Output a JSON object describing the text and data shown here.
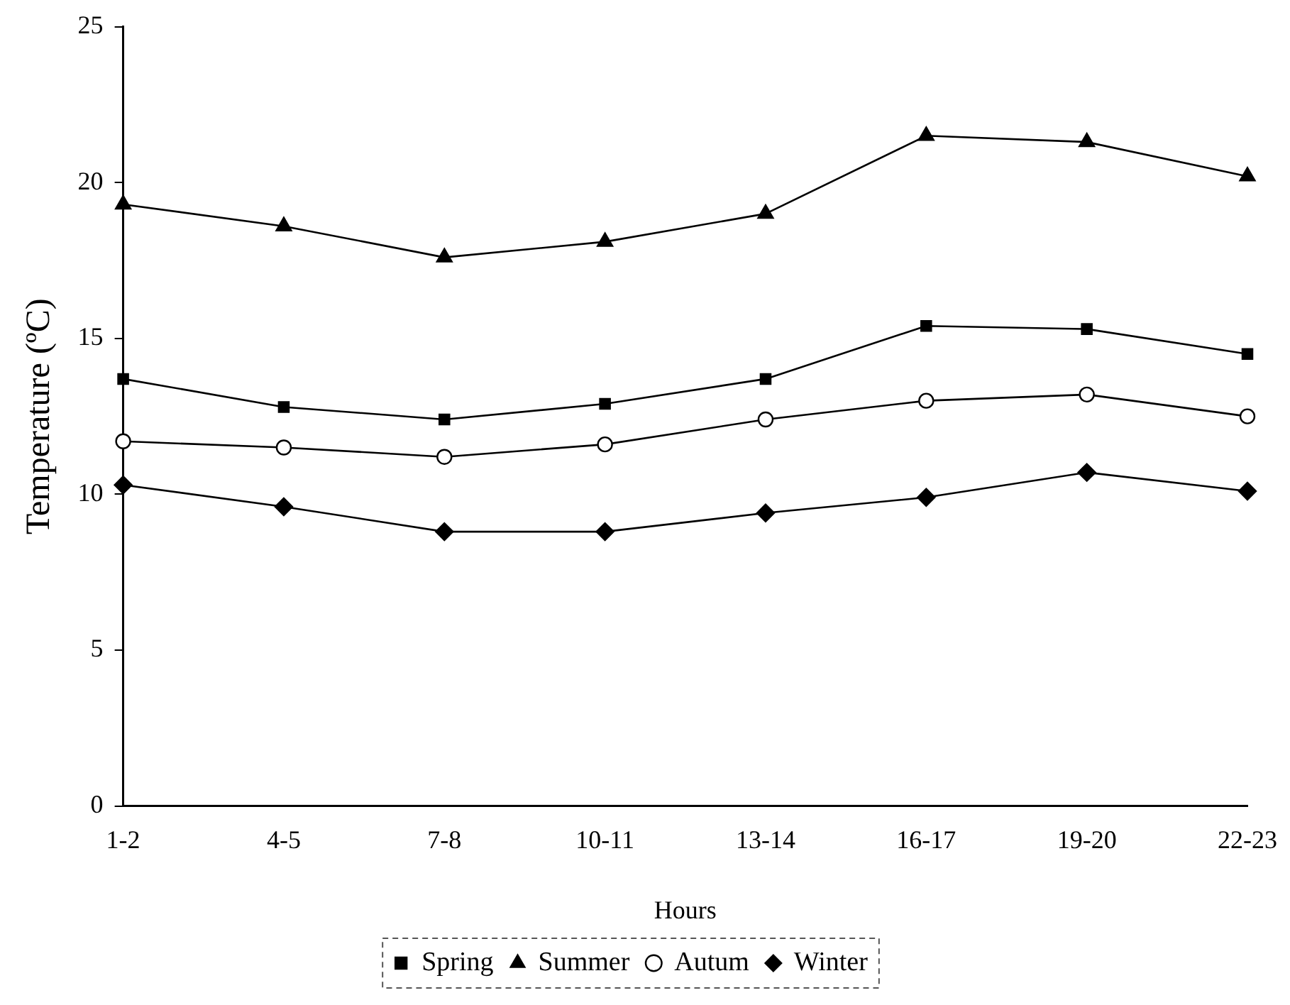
{
  "chart_data": {
    "type": "line",
    "xlabel": "Hours",
    "ylabel": "Temperature (ºC)",
    "categories": [
      "1-2",
      "4-5",
      "7-8",
      "10-11",
      "13-14",
      "16-17",
      "19-20",
      "22-23"
    ],
    "series": [
      {
        "name": "Spring",
        "color": "#000000",
        "marker": "square",
        "values": [
          13.7,
          12.8,
          12.4,
          12.9,
          13.7,
          15.4,
          15.3,
          14.5
        ]
      },
      {
        "name": "Summer",
        "color": "#000000",
        "marker": "triangle",
        "values": [
          19.3,
          18.6,
          17.6,
          18.1,
          19.0,
          21.5,
          21.3,
          20.2
        ]
      },
      {
        "name": "Autum",
        "color": "#000000",
        "marker": "circle",
        "values": [
          11.7,
          11.5,
          11.2,
          11.6,
          12.4,
          13.0,
          13.2,
          12.5
        ]
      },
      {
        "name": "Winter",
        "color": "#000000",
        "marker": "diamond",
        "values": [
          10.3,
          9.6,
          8.8,
          8.8,
          9.4,
          9.9,
          10.7,
          10.1
        ]
      }
    ],
    "ylim": [
      0,
      25
    ],
    "yticks": [
      0,
      5,
      10,
      15,
      20,
      25
    ],
    "grid": false,
    "legend": "bottom"
  }
}
